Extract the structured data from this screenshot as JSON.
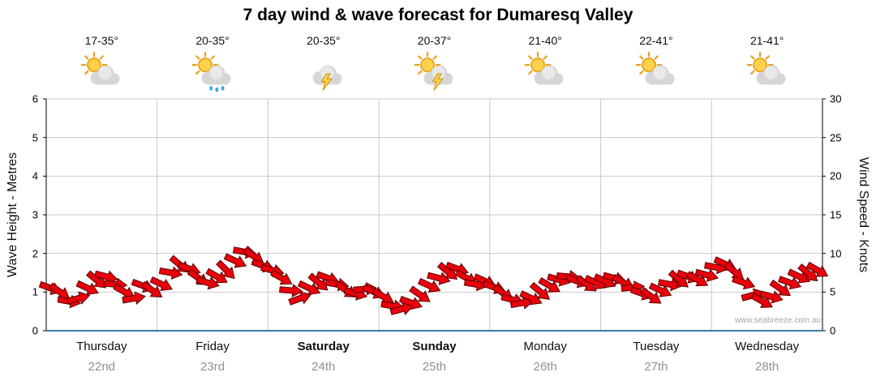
{
  "title": "7 day wind & wave forecast for Dumaresq Valley",
  "watermark": "www.seabreeze.com.au",
  "chart_data": {
    "type": "scatter",
    "marker": "wind-arrow",
    "title": "7 day wind & wave forecast for Dumaresq Valley",
    "left_axis": {
      "label": "Wave Height - Metres",
      "min": 0,
      "max": 6,
      "ticks": [
        0,
        1,
        2,
        3,
        4,
        5,
        6
      ]
    },
    "right_axis": {
      "label": "Wind Speed - Knots",
      "min": 0,
      "max": 30,
      "ticks": [
        0,
        5,
        10,
        15,
        20,
        25,
        30
      ]
    },
    "days": [
      {
        "name": "Thursday",
        "date": "22nd",
        "temp": "17-35°",
        "icon": "sun-cloud",
        "weekend": false
      },
      {
        "name": "Friday",
        "date": "23rd",
        "temp": "20-35°",
        "icon": "sun-cloud-rain",
        "weekend": false
      },
      {
        "name": "Saturday",
        "date": "24th",
        "temp": "20-35°",
        "icon": "cloud-storm",
        "weekend": true
      },
      {
        "name": "Sunday",
        "date": "25th",
        "temp": "20-37°",
        "icon": "sun-cloud-storm",
        "weekend": true
      },
      {
        "name": "Monday",
        "date": "26th",
        "temp": "21-40°",
        "icon": "sun-cloud",
        "weekend": false
      },
      {
        "name": "Tuesday",
        "date": "27th",
        "temp": "22-41°",
        "icon": "sun-cloud",
        "weekend": false
      },
      {
        "name": "Wednesday",
        "date": "28th",
        "temp": "21-41°",
        "icon": "sun-cloud",
        "weekend": false
      }
    ],
    "points_per_day": 12,
    "series": [
      {
        "name": "Wind Speed",
        "units": "knots",
        "values": [
          5.5,
          5.0,
          3.8,
          4.2,
          5.5,
          6.5,
          7.0,
          6.0,
          5.0,
          4.2,
          5.8,
          5.2,
          6.0,
          7.5,
          8.5,
          8.0,
          6.8,
          6.2,
          7.0,
          7.8,
          9.0,
          10.2,
          9.6,
          8.4,
          7.8,
          6.8,
          5.2,
          4.2,
          5.5,
          6.2,
          6.8,
          6.0,
          5.2,
          4.8,
          5.4,
          5.0,
          4.4,
          3.2,
          2.8,
          3.6,
          4.6,
          5.8,
          6.8,
          7.6,
          8.0,
          6.8,
          6.0,
          6.4,
          5.6,
          4.8,
          4.0,
          3.6,
          4.2,
          5.0,
          5.8,
          6.6,
          7.0,
          6.4,
          6.0,
          6.2,
          6.4,
          6.8,
          6.2,
          5.6,
          4.8,
          4.4,
          5.2,
          6.0,
          6.6,
          7.0,
          6.6,
          7.2,
          8.2,
          8.6,
          7.6,
          6.2,
          4.6,
          3.8,
          4.4,
          5.4,
          6.2,
          7.0,
          7.4,
          7.8
        ],
        "directions_deg": [
          20,
          35,
          10,
          -15,
          25,
          40,
          15,
          5,
          30,
          -10,
          20,
          35,
          25,
          10,
          40,
          20,
          35,
          15,
          30,
          45,
          25,
          10,
          35,
          20,
          15,
          30,
          5,
          -20,
          25,
          40,
          20,
          10,
          35,
          15,
          -5,
          25,
          30,
          10,
          -15,
          20,
          35,
          25,
          15,
          40,
          20,
          30,
          10,
          25,
          20,
          35,
          15,
          -10,
          25,
          40,
          30,
          15,
          5,
          20,
          35,
          25,
          25,
          15,
          30,
          -5,
          20,
          35,
          25,
          10,
          40,
          20,
          30,
          15,
          10,
          25,
          40,
          20,
          -15,
          30,
          15,
          35,
          20,
          25,
          40,
          30
        ]
      }
    ],
    "colors": {
      "arrow_fill": "#e8000b",
      "arrow_stroke": "#5a0000",
      "grid": "#c9c9c9",
      "axis": "#000000",
      "x_axis_line": "#3a7ca5",
      "date_text": "#919191",
      "icon": {
        "sun": "#ffd24a",
        "sun_stroke": "#e8a21e",
        "cloud": "#d6d6d6",
        "cloud_light": "#e9e9e9",
        "rain": "#3fa9e0",
        "bolt": "#ffd24a",
        "bolt_stroke": "#cc8a00"
      }
    }
  }
}
